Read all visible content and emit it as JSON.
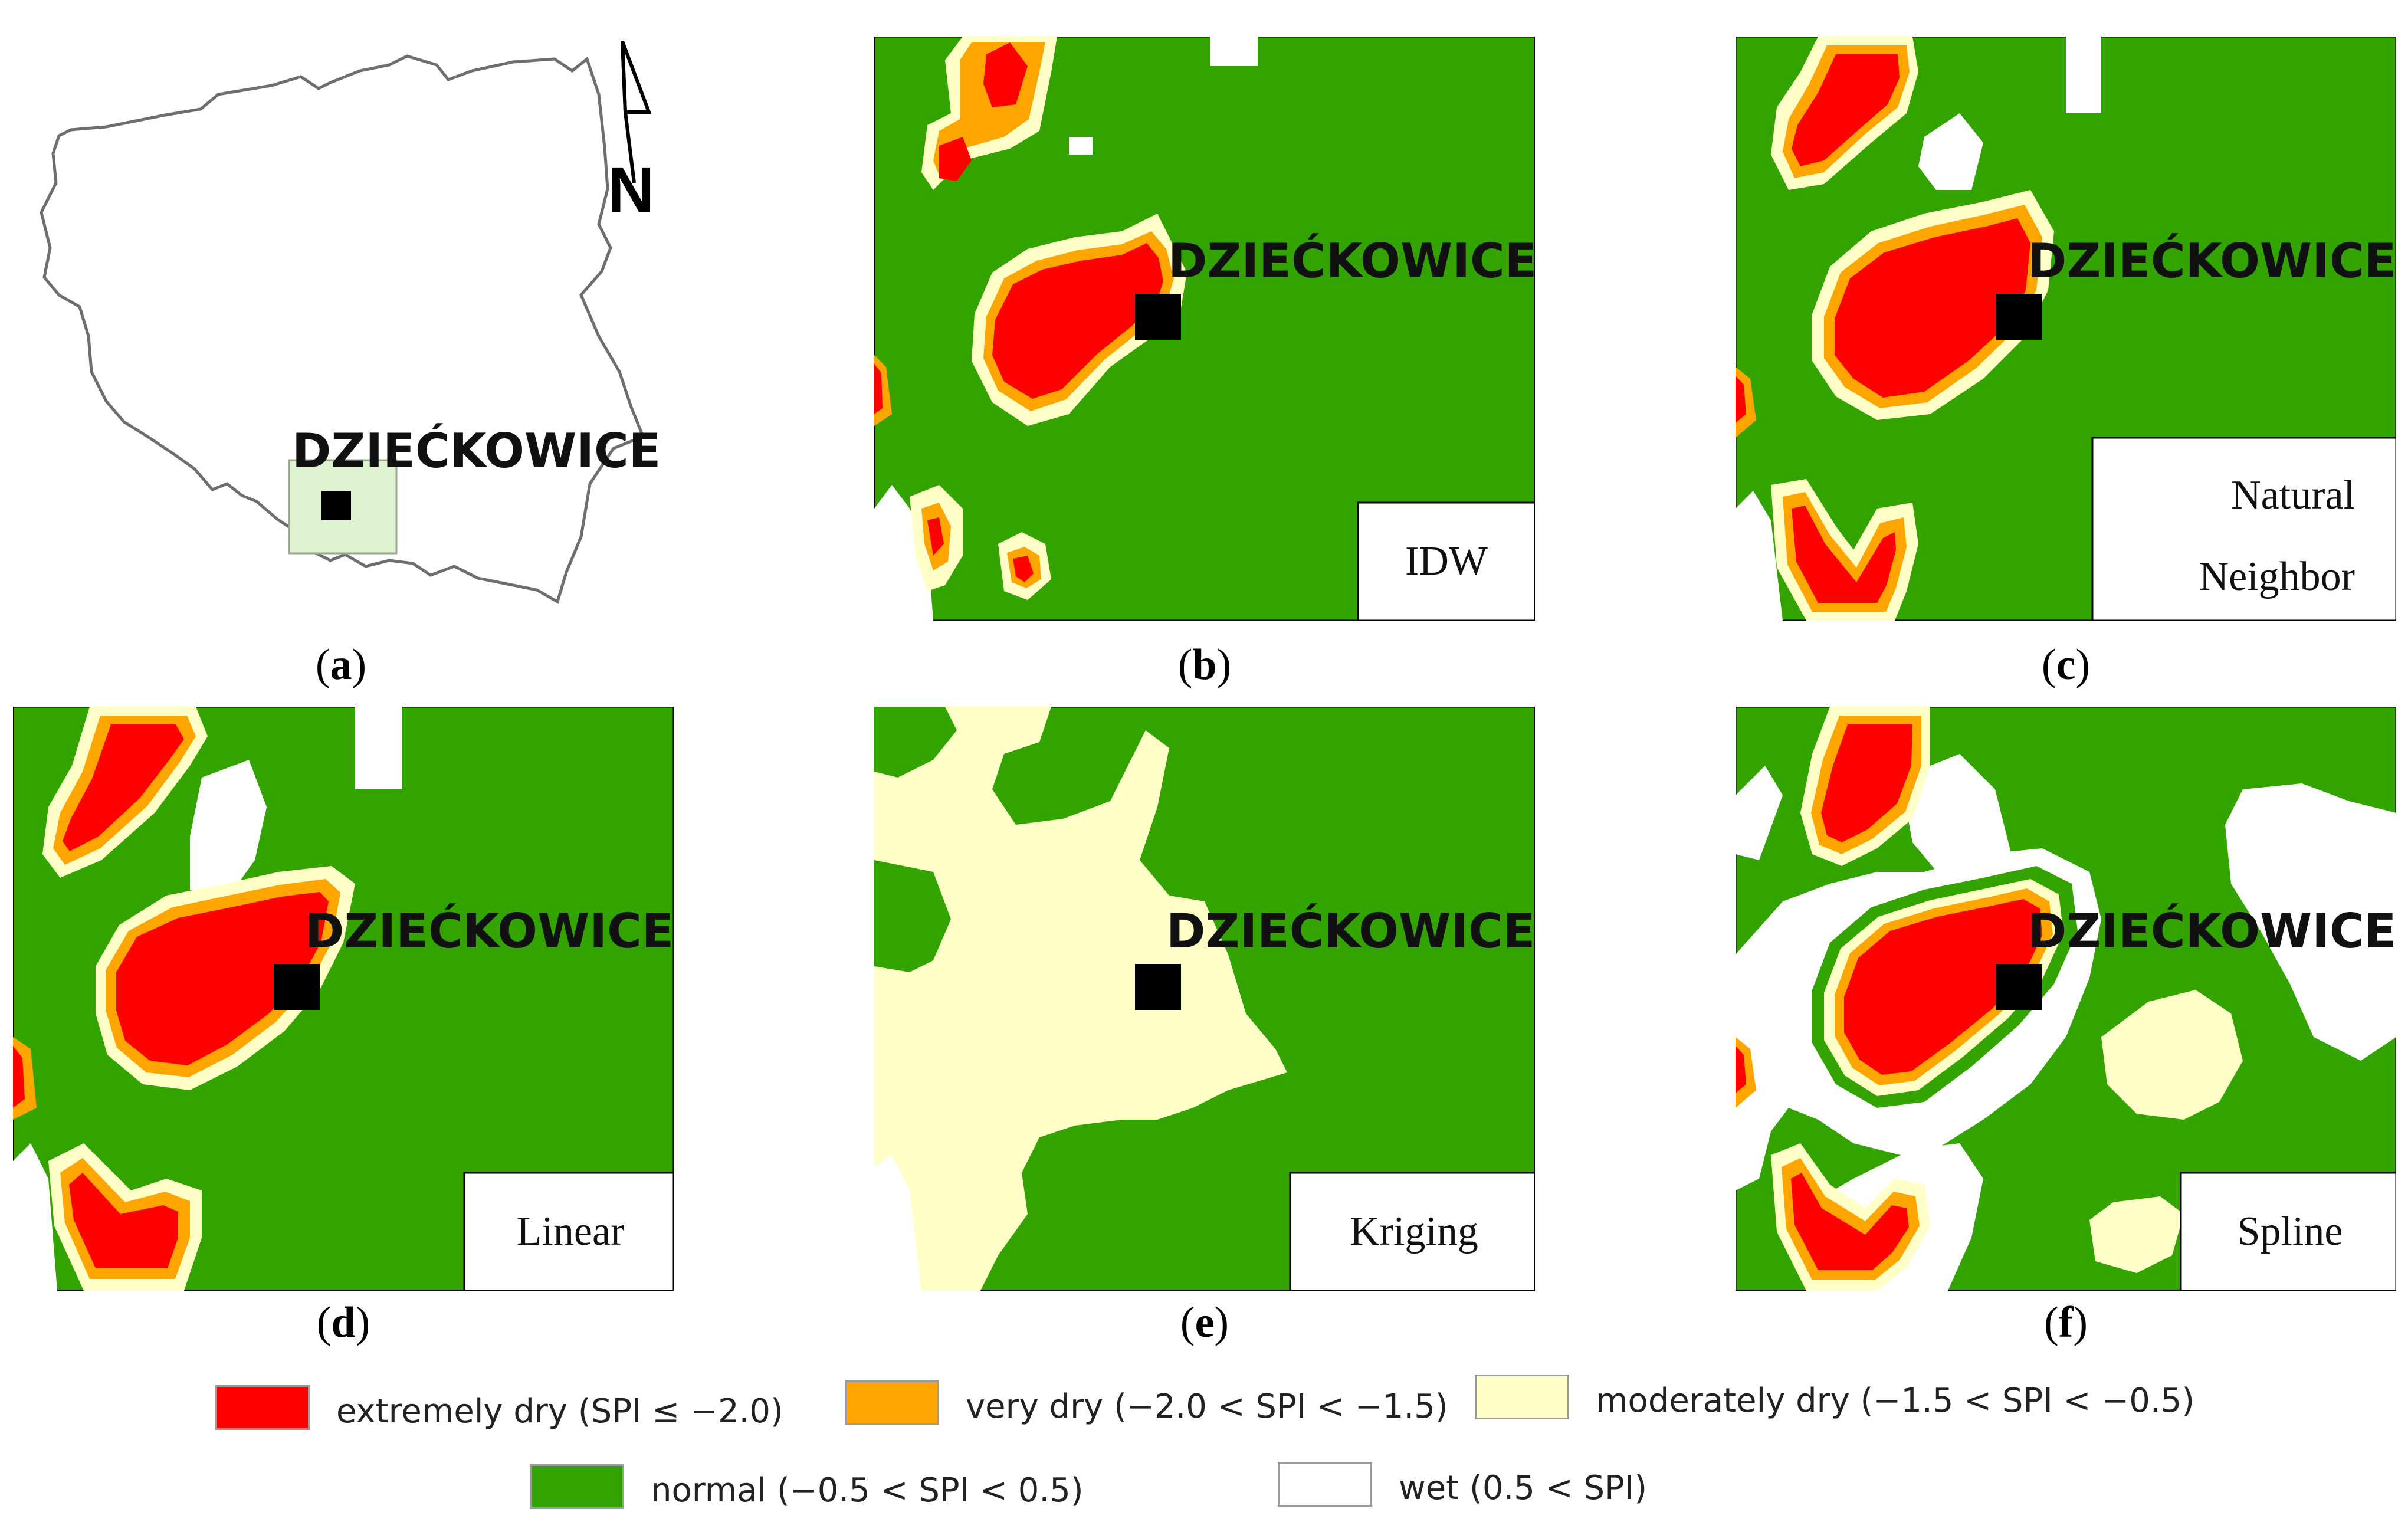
{
  "station_name": "DZIEĆKOWICE",
  "north_label": "N",
  "panels": [
    {
      "id": "a",
      "caption": "a",
      "method": ""
    },
    {
      "id": "b",
      "caption": "b",
      "method": "IDW"
    },
    {
      "id": "c",
      "caption": "c",
      "method_line1": "Natural",
      "method_line2": "Neighbor"
    },
    {
      "id": "d",
      "caption": "d",
      "method": "Linear"
    },
    {
      "id": "e",
      "caption": "e",
      "method": "Kriging"
    },
    {
      "id": "f",
      "caption": "f",
      "method": "Spline"
    }
  ],
  "legend": [
    {
      "label": "extremely dry (SPI ≤ −2.0)",
      "color": "#ff0000"
    },
    {
      "label": "very dry (−2.0 < SPI < −1.5)",
      "color": "#ffa500"
    },
    {
      "label": "moderately dry (−1.5 < SPI < −0.5)",
      "color": "#ffffc8"
    },
    {
      "label": "normal (−0.5 < SPI < 0.5)",
      "color": "#33a300"
    },
    {
      "label": "wet (0.5 < SPI)",
      "color": "#ffffff"
    }
  ],
  "colors": {
    "extremely_dry": "#ff0000",
    "very_dry": "#ffa500",
    "moderately_dry": "#ffffc8",
    "normal": "#33a300",
    "wet": "#ffffff"
  }
}
